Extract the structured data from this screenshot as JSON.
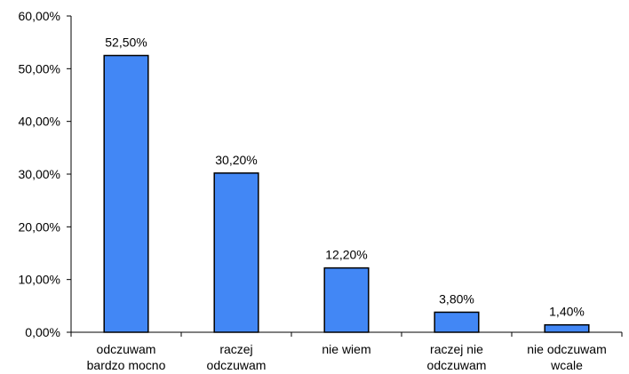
{
  "chart_data": {
    "type": "bar",
    "categories": [
      [
        "odczuwam",
        "bardzo mocno"
      ],
      [
        "raczej",
        "odczuwam"
      ],
      [
        "nie wiem"
      ],
      [
        "raczej nie",
        "odczuwam"
      ],
      [
        "nie odczuwam",
        "wcale"
      ]
    ],
    "values": [
      52.5,
      30.2,
      12.2,
      3.8,
      1.4
    ],
    "data_labels": [
      "52,50%",
      "30,20%",
      "12,20%",
      "3,80%",
      "1,40%"
    ],
    "y_ticks": [
      {
        "value": 0,
        "label": "0,00%"
      },
      {
        "value": 10,
        "label": "10,00%"
      },
      {
        "value": 20,
        "label": "20,00%"
      },
      {
        "value": 30,
        "label": "30,00%"
      },
      {
        "value": 40,
        "label": "40,00%"
      },
      {
        "value": 50,
        "label": "50,00%"
      },
      {
        "value": 60,
        "label": "60,00%"
      }
    ],
    "ylim": [
      0,
      60
    ],
    "title": "",
    "xlabel": "",
    "ylabel": "",
    "grid": false,
    "legend": "none",
    "bar_color": "#4287f5",
    "bar_edge_color": "#000000"
  }
}
